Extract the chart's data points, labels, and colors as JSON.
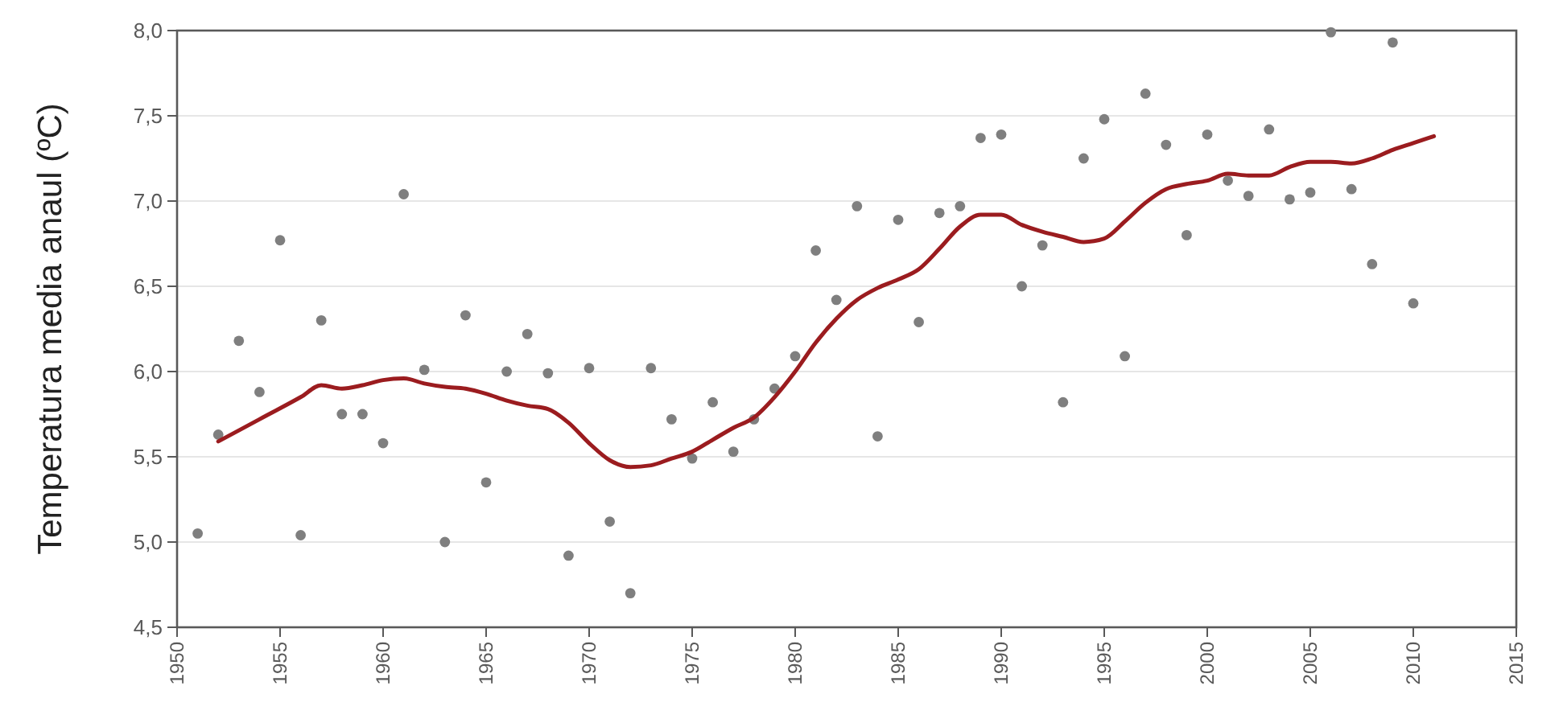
{
  "chart_data": {
    "type": "scatter",
    "ylabel": "Temperatura media anaul (ºC)",
    "xlim": [
      1950,
      2015
    ],
    "xticks": [
      1950,
      1955,
      1960,
      1965,
      1970,
      1975,
      1980,
      1985,
      1990,
      1995,
      2000,
      2005,
      2010,
      2015
    ],
    "ylim": [
      4.5,
      8
    ],
    "yticks": [
      {
        "value": 4.5,
        "label": "4,5"
      },
      {
        "value": 5,
        "label": "5,0"
      },
      {
        "value": 5.5,
        "label": "5,5"
      },
      {
        "value": 6,
        "label": "6,0"
      },
      {
        "value": 6.5,
        "label": "6,5"
      },
      {
        "value": 7,
        "label": "7,0"
      },
      {
        "value": 7.5,
        "label": "7,5"
      },
      {
        "value": 8,
        "label": "8,0"
      }
    ],
    "grid": "y",
    "series": [
      {
        "color": "#7f7f7f",
        "marker": "circle",
        "x": [
          1951,
          1952,
          1953,
          1954,
          1955,
          1956,
          1957,
          1958,
          1959,
          1960,
          1961,
          1962,
          1963,
          1964,
          1965,
          1966,
          1967,
          1968,
          1969,
          1970,
          1971,
          1972,
          1973,
          1974,
          1975,
          1976,
          1977,
          1978,
          1979,
          1980,
          1981,
          1982,
          1983,
          1984,
          1985,
          1986,
          1987,
          1988,
          1989,
          1990,
          1991,
          1992,
          1993,
          1994,
          1995,
          1996,
          1997,
          1998,
          1999,
          2000,
          2001,
          2002,
          2003,
          2004,
          2005,
          2006,
          2007,
          2008,
          2009,
          2010
        ],
        "values": [
          5.05,
          5.63,
          6.18,
          5.88,
          6.77,
          5.04,
          6.3,
          5.75,
          5.75,
          5.58,
          7.04,
          6.01,
          5.0,
          6.33,
          5.35,
          6.0,
          6.22,
          5.99,
          4.92,
          6.02,
          5.12,
          4.7,
          6.02,
          5.72,
          5.49,
          5.82,
          5.53,
          5.72,
          5.9,
          6.09,
          6.71,
          6.42,
          6.97,
          5.62,
          6.89,
          6.29,
          6.93,
          6.97,
          7.37,
          7.39,
          6.5,
          6.74,
          5.82,
          7.25,
          7.48,
          6.09,
          7.63,
          7.33,
          6.8,
          7.39,
          7.12,
          7.03,
          7.42,
          7.01,
          7.05,
          7.99,
          7.07,
          6.63,
          7.93,
          6.4
        ]
      },
      {
        "type": "line",
        "color": "#9b1c1f",
        "marker": "none",
        "line_style": "solid",
        "x": [
          1952,
          1954,
          1956,
          1957,
          1958,
          1959,
          1960,
          1961,
          1962,
          1963,
          1964,
          1965,
          1966,
          1967,
          1968,
          1969,
          1970,
          1971,
          1972,
          1973,
          1974,
          1975,
          1976,
          1977,
          1978,
          1979,
          1980,
          1981,
          1982,
          1983,
          1984,
          1985,
          1986,
          1987,
          1988,
          1989,
          1990,
          1991,
          1992,
          1993,
          1994,
          1995,
          1996,
          1997,
          1998,
          1999,
          2000,
          2001,
          2002,
          2003,
          2004,
          2005,
          2006,
          2007,
          2008,
          2009,
          2010,
          2011
        ],
        "values": [
          5.59,
          5.72,
          5.85,
          5.92,
          5.9,
          5.92,
          5.95,
          5.96,
          5.93,
          5.91,
          5.9,
          5.87,
          5.83,
          5.8,
          5.78,
          5.7,
          5.58,
          5.48,
          5.44,
          5.45,
          5.49,
          5.53,
          5.6,
          5.67,
          5.73,
          5.85,
          6.0,
          6.17,
          6.31,
          6.42,
          6.49,
          6.54,
          6.6,
          6.72,
          6.85,
          6.92,
          6.92,
          6.86,
          6.82,
          6.79,
          6.76,
          6.78,
          6.88,
          6.99,
          7.07,
          7.1,
          7.12,
          7.16,
          7.15,
          7.15,
          7.2,
          7.23,
          7.23,
          7.22,
          7.25,
          7.3,
          7.34,
          7.38
        ]
      }
    ]
  }
}
